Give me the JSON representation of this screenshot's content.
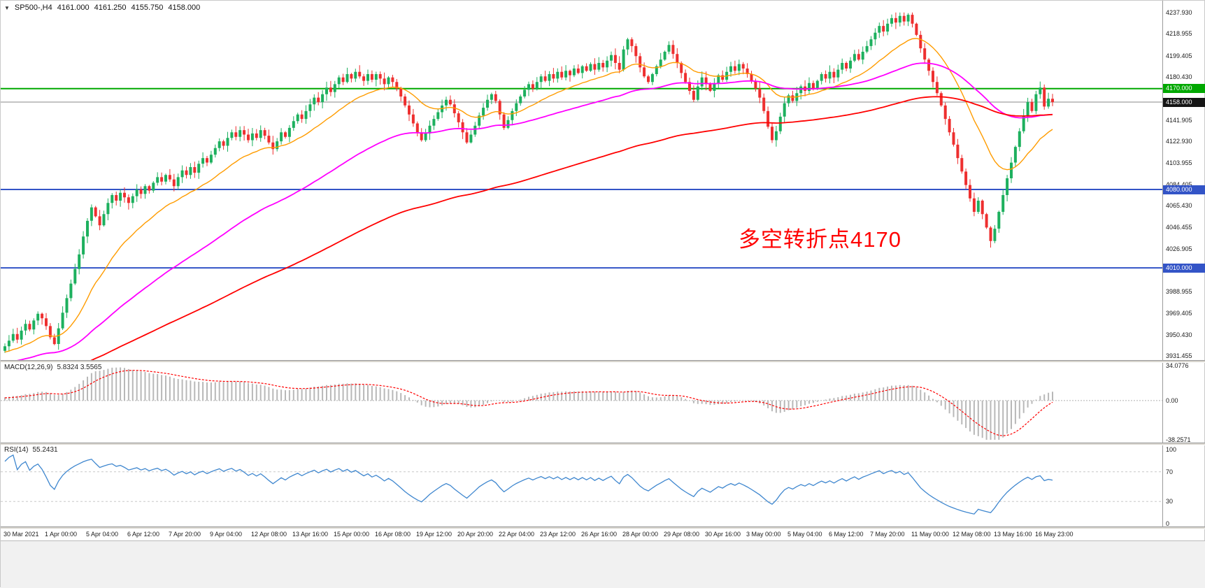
{
  "header": {
    "icon": "▼",
    "symbol": "SP500-,H4",
    "open": "4161.000",
    "high": "4161.250",
    "low": "4155.750",
    "close": "4158.000"
  },
  "chart_data": {
    "type": "candlestick",
    "title": "SP500-,H4",
    "ylim": [
      3928.94,
      4248.54
    ],
    "price_axis_labels": [
      "4237.930",
      "4218.955",
      "4199.405",
      "4180.430",
      "4141.905",
      "4122.930",
      "4103.955",
      "4084.405",
      "4065.430",
      "4046.455",
      "4026.905",
      "3988.955",
      "3969.405",
      "3950.430",
      "3931.455"
    ],
    "hlines": [
      {
        "price": 4170.0,
        "label": "4170.000",
        "color": "#00a800",
        "width": 2,
        "badge_bg": "#00a800"
      },
      {
        "price": 4158.0,
        "label": "4158.000",
        "color": "#8a8a8a",
        "width": 1,
        "badge_bg": "#151515"
      },
      {
        "price": 4080.0,
        "label": "4080.000",
        "color": "#3354c7",
        "width": 2,
        "badge_bg": "#3354c7"
      },
      {
        "price": 4010.0,
        "label": "4010.000",
        "color": "#3354c7",
        "width": 2,
        "badge_bg": "#3354c7"
      }
    ],
    "annotation": {
      "text": "多空转折点4170",
      "color": "#ff0000"
    },
    "time_labels": [
      "30 Mar 2021",
      "1 Apr 00:00",
      "5 Apr 04:00",
      "6 Apr 12:00",
      "7 Apr 20:00",
      "9 Apr 04:00",
      "12 Apr 08:00",
      "13 Apr 16:00",
      "15 Apr 00:00",
      "16 Apr 08:00",
      "19 Apr 12:00",
      "20 Apr 20:00",
      "22 Apr 04:00",
      "23 Apr 12:00",
      "26 Apr 16:00",
      "28 Apr 00:00",
      "29 Apr 08:00",
      "30 Apr 16:00",
      "3 May 00:00",
      "5 May 04:00",
      "6 May 12:00",
      "7 May 20:00",
      "11 May 00:00",
      "12 May 08:00",
      "13 May 16:00",
      "16 May 23:00"
    ],
    "closes": [
      3940,
      3945,
      3951,
      3946,
      3954,
      3960,
      3955,
      3963,
      3969,
      3965,
      3958,
      3948,
      3942,
      3956,
      3970,
      3983,
      3996,
      4009,
      4022,
      4038,
      4052,
      4064,
      4056,
      4048,
      4058,
      4068,
      4075,
      4070,
      4077,
      4073,
      4068,
      4074,
      4080,
      4076,
      4083,
      4079,
      4086,
      4091,
      4087,
      4093,
      4089,
      4083,
      4091,
      4097,
      4093,
      4100,
      4095,
      4103,
      4108,
      4104,
      4111,
      4117,
      4123,
      4119,
      4126,
      4131,
      4127,
      4133,
      4129,
      4124,
      4130,
      4126,
      4133,
      4128,
      4122,
      4116,
      4123,
      4131,
      4127,
      4135,
      4141,
      4147,
      4143,
      4150,
      4156,
      4162,
      4158,
      4165,
      4171,
      4167,
      4174,
      4180,
      4176,
      4183,
      4179,
      4185,
      4181,
      4177,
      4183,
      4178,
      4183,
      4179,
      4174,
      4180,
      4176,
      4170,
      4163,
      4155,
      4147,
      4139,
      4131,
      4124,
      4130,
      4137,
      4143,
      4149,
      4155,
      4160,
      4156,
      4148,
      4140,
      4131,
      4122,
      4129,
      4137,
      4146,
      4153,
      4160,
      4165,
      4159,
      4147,
      4135,
      4142,
      4150,
      4157,
      4163,
      4169,
      4174,
      4170,
      4176,
      4181,
      4177,
      4183,
      4179,
      4185,
      4180,
      4186,
      4182,
      4188,
      4184,
      4190,
      4186,
      4192,
      4187,
      4193,
      4189,
      4195,
      4200,
      4193,
      4187,
      4205,
      4214,
      4208,
      4199,
      4189,
      4181,
      4176,
      4183,
      4190,
      4196,
      4203,
      4209,
      4201,
      4193,
      4184,
      4176,
      4168,
      4160,
      4172,
      4180,
      4174,
      4168,
      4175,
      4182,
      4178,
      4185,
      4190,
      4186,
      4192,
      4188,
      4183,
      4177,
      4170,
      4162,
      4150,
      4136,
      4124,
      4132,
      4145,
      4157,
      4164,
      4159,
      4166,
      4172,
      4168,
      4175,
      4170,
      4177,
      4183,
      4179,
      4185,
      4180,
      4187,
      4193,
      4188,
      4195,
      4201,
      4196,
      4203,
      4208,
      4214,
      4220,
      4226,
      4221,
      4228,
      4233,
      4229,
      4235,
      4230,
      4236,
      4228,
      4218,
      4206,
      4196,
      4186,
      4176,
      4166,
      4155,
      4143,
      4131,
      4120,
      4108,
      4096,
      4084,
      4072,
      4060,
      4070,
      4058,
      4046,
      4034,
      4045,
      4060,
      4075,
      4090,
      4104,
      4118,
      4132,
      4146,
      4158,
      4150,
      4165,
      4171,
      4154,
      4161,
      4158
    ],
    "moving_averages": [
      {
        "name": "ma-fast",
        "period": 20,
        "color": "#ff9c00",
        "width": 1.4
      },
      {
        "name": "ma-mid",
        "period": 65,
        "color": "#ff00ff",
        "width": 1.8
      },
      {
        "name": "ma-slow",
        "period": 150,
        "color": "#ff0000",
        "width": 1.8
      }
    ],
    "macd": {
      "label": "MACD(12,26,9)",
      "value_text": "5.8324 3.5565",
      "params": [
        12,
        26,
        9
      ],
      "axis": [
        "34.0776",
        "0.00",
        "-38.2571"
      ],
      "range": [
        34.0776,
        -38.2571
      ]
    },
    "rsi": {
      "label": "RSI(14)",
      "value_text": "55.2431",
      "period": 14,
      "axis": [
        "100",
        "70",
        "30",
        "0"
      ],
      "levels": [
        70,
        30
      ]
    },
    "colors": {
      "up": "#1db05e",
      "down": "#ee2f2f",
      "macd_hist": "#b8b8b8",
      "macd_signal": "#ff0000",
      "rsi_line": "#3f87cf",
      "level_dash": "#c8c8c8",
      "zero_dash": "#b0b0b0"
    }
  }
}
